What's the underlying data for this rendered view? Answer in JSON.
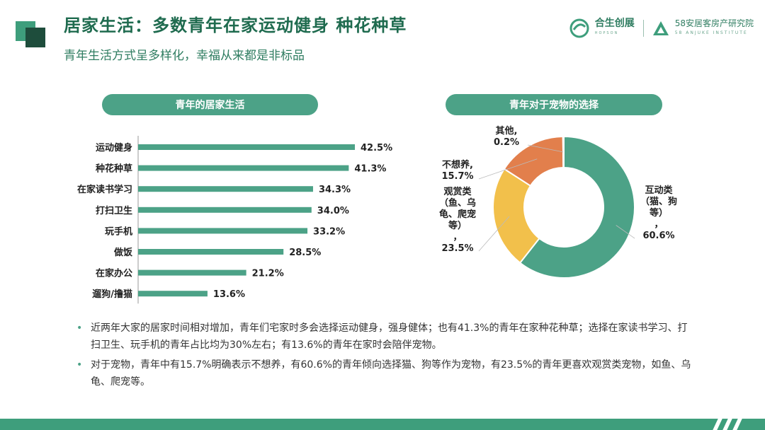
{
  "header": {
    "title": "居家生活：多数青年在家运动健身 种花种草",
    "subtitle": "青年生活方式呈多样化，幸福从来都是非标品"
  },
  "brand": {
    "name1": "合生创展",
    "name1_en": "HOPSON",
    "name2": "58安居客房产研究院",
    "name2_en": "58 ANJUKE INSTITUTE"
  },
  "colors": {
    "accent": "#3e9e7c",
    "bar": "#4ca287",
    "pie_green": "#4ca287",
    "pie_yellow": "#f2c04b",
    "pie_orange": "#e27f4c",
    "pie_gray": "#a5a5a5"
  },
  "chart_data": [
    {
      "type": "bar",
      "title": "青年的居家生活",
      "categories": [
        "运动健身",
        "种花种草",
        "在家读书学习",
        "打扫卫生",
        "玩手机",
        "做饭",
        "在家办公",
        "遛狗/撸猫"
      ],
      "values": [
        42.5,
        41.3,
        34.3,
        34.0,
        33.2,
        28.5,
        21.2,
        13.6
      ],
      "value_labels": [
        "42.5%",
        "41.3%",
        "34.3%",
        "34.0%",
        "33.2%",
        "28.5%",
        "21.2%",
        "13.6%"
      ],
      "orientation": "horizontal",
      "xlim": [
        0,
        45
      ]
    },
    {
      "type": "pie",
      "title": "青年对于宠物的选择",
      "categories": [
        "互动类（猫、狗等）",
        "观赏类（鱼、乌龟、爬宠等）",
        "不想养",
        "其他"
      ],
      "values": [
        60.6,
        23.5,
        15.7,
        0.2
      ],
      "labels": [
        [
          "互动类",
          "（猫、狗",
          "等）",
          "，",
          "60.6%"
        ],
        [
          "观赏类",
          "（鱼、乌",
          "龟、爬宠",
          "等）",
          "，",
          "23.5%"
        ],
        [
          "不想养,",
          "15.7%"
        ],
        [
          "其他,",
          "0.2%"
        ]
      ],
      "donut": true
    }
  ],
  "notes": [
    "近两年大家的居家时间相对增加，青年们宅家时多会选择运动健身，强身健体；也有41.3%的青年在家种花种草；选择在家读书学习、打扫卫生、玩手机的青年占比均为30%左右；有13.6%的青年在家时会陪伴宠物。",
    "对于宠物，青年中有15.7%明确表示不想养，有60.6%的青年倾向选择猫、狗等作为宠物，有23.5%的青年更喜欢观赏类宠物，如鱼、乌龟、爬宠等。"
  ],
  "bullet_symbol": "•"
}
